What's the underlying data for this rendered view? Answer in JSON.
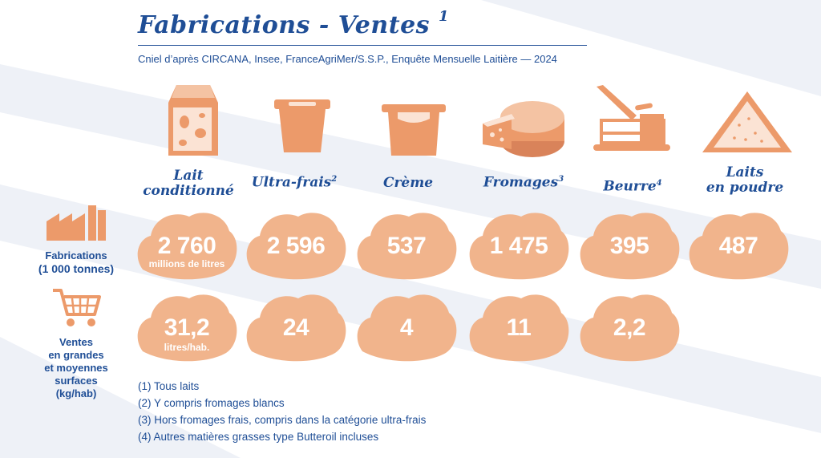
{
  "header": {
    "title": "Fabrications - Ventes",
    "title_sup": "1",
    "source": "Cniel d’après CIRCANA, Insee, FranceAgriMer/S.S.P., Enquête Mensuelle Laitière — 2024"
  },
  "categories": [
    {
      "label_line1": "Lait",
      "label_line2": "conditionné",
      "sup": "",
      "icon": "milk-carton-icon"
    },
    {
      "label_line1": "Ultra-frais",
      "label_line2": "",
      "sup": "2",
      "icon": "yogurt-cup-icon"
    },
    {
      "label_line1": "Crème",
      "label_line2": "",
      "sup": "",
      "icon": "cream-pot-icon"
    },
    {
      "label_line1": "Fromages",
      "label_line2": "",
      "sup": "3",
      "icon": "cheese-wheel-icon"
    },
    {
      "label_line1": "Beurre",
      "label_line2": "",
      "sup": "4",
      "icon": "butter-dish-icon"
    },
    {
      "label_line1": "Laits",
      "label_line2": "en poudre",
      "sup": "",
      "icon": "powder-pile-icon"
    }
  ],
  "rows": {
    "fabrications": {
      "label_line1": "Fabrications",
      "label_line2": "(1 000 tonnes)",
      "icon": "factory-icon",
      "values": [
        "2 760",
        "2 596",
        "537",
        "1 475",
        "395",
        "487"
      ],
      "first_unit": "millions de litres"
    },
    "ventes": {
      "label_lines": [
        "Ventes",
        "en grandes",
        "et moyennes",
        "surfaces",
        "(kg/hab)"
      ],
      "icon": "shopping-cart-icon",
      "values": [
        "31,2",
        "24",
        "4",
        "11",
        "2,2"
      ],
      "first_unit": "litres/hab."
    }
  },
  "notes": [
    "(1) Tous laits",
    "(2) Y compris fromages blancs",
    "(3) Hors fromages frais, compris dans la catégorie ultra-frais",
    "(4) Autres matières grasses type Butteroil incluses"
  ],
  "colors": {
    "accent_orange": "#ec9a6a",
    "cloud_fill": "#f1b48c",
    "text_blue": "#1f4e96",
    "stripe": "#eef1f7"
  }
}
